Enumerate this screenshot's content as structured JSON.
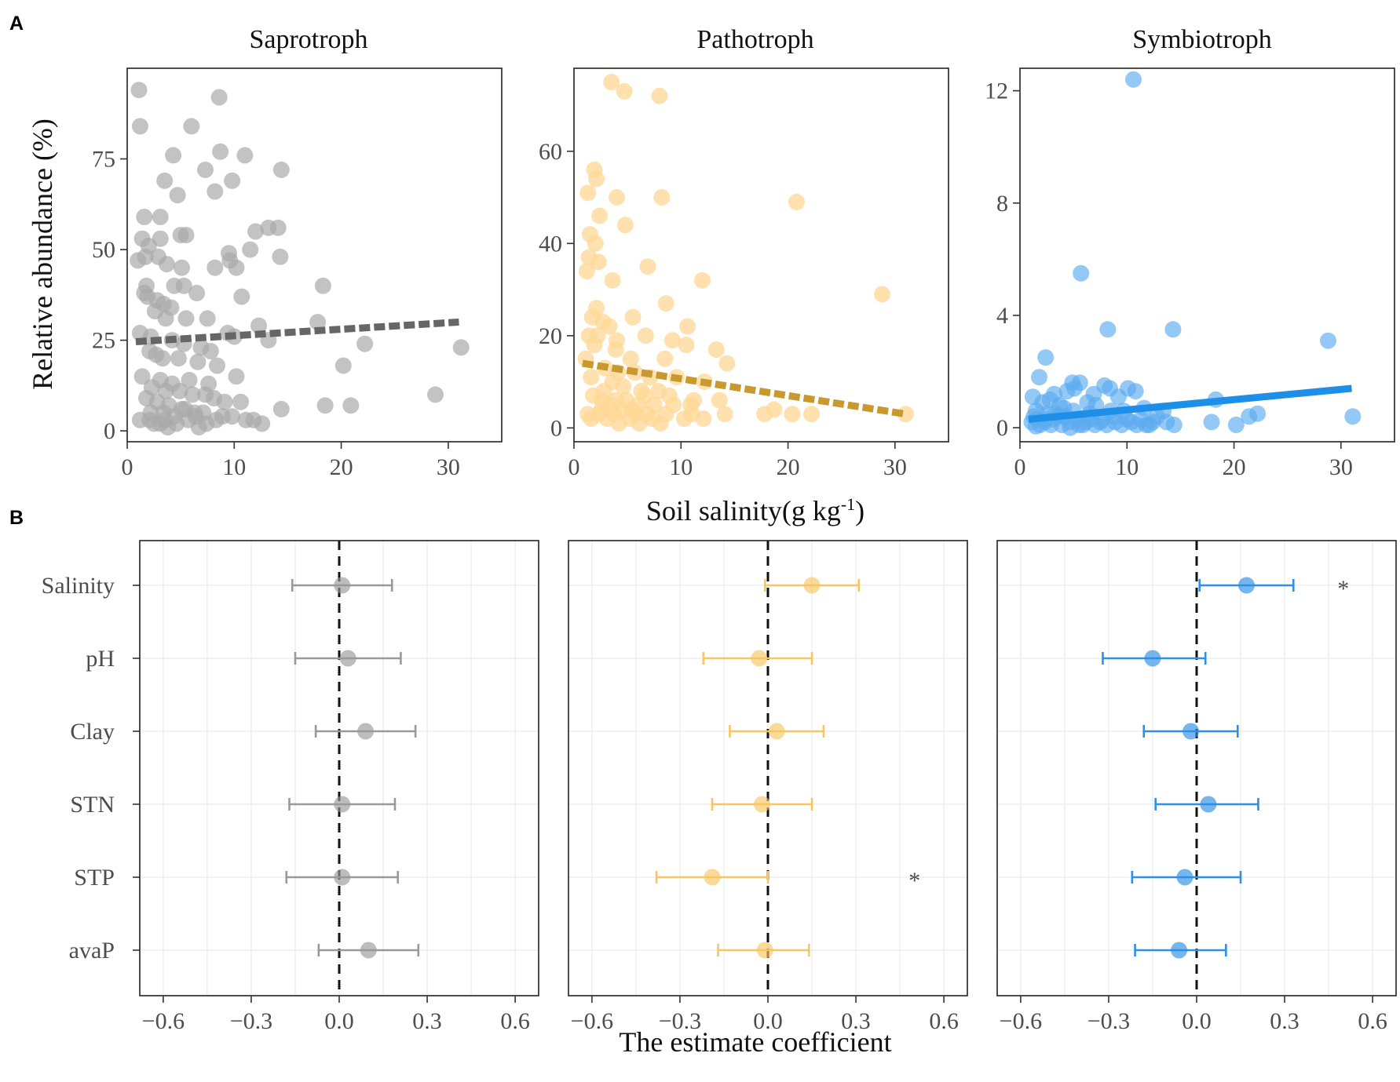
{
  "figure": {
    "panel_a_label": "A",
    "panel_b_label": "B",
    "a_ylabel": "Relative abundance (%)",
    "a_xlabel_main": "Soil salinity(g kg",
    "a_xlabel_sup": "-1",
    "a_xlabel_close": ")",
    "b_xlabel": "The estimate coefficient"
  },
  "colors": {
    "saprotroph": "#aaaaaa",
    "saprotroph_line": "#666666",
    "pathotroph": "#fdd794",
    "pathotroph_line": "#c9992f",
    "symbiotroph": "#5aaaf0",
    "symbiotroph_line": "#1e8fe8",
    "forest_gray": "#999999",
    "forest_orange": "#f6c663",
    "forest_blue": "#2d8fe6"
  },
  "chart_data": [
    {
      "id": "saprotroph",
      "type": "scatter",
      "title": "Saprotroph",
      "xlim": [
        0,
        35
      ],
      "ylim": [
        -3,
        100
      ],
      "xticks": [
        0,
        10,
        20,
        30
      ],
      "yticks": [
        0,
        25,
        50,
        75
      ],
      "trend": {
        "x": [
          0.8,
          31
        ],
        "y": [
          24.6,
          30
        ],
        "style": "dashed"
      },
      "points": [
        [
          1.1,
          94
        ],
        [
          8.6,
          92
        ],
        [
          1.2,
          84
        ],
        [
          6,
          84
        ],
        [
          4.3,
          76
        ],
        [
          8.7,
          77
        ],
        [
          11,
          76
        ],
        [
          3.5,
          69
        ],
        [
          7.3,
          72
        ],
        [
          9.8,
          69
        ],
        [
          14.4,
          72
        ],
        [
          8.2,
          66
        ],
        [
          4.7,
          65
        ],
        [
          1.6,
          59
        ],
        [
          3.1,
          59
        ],
        [
          12,
          55
        ],
        [
          13.2,
          56
        ],
        [
          14.1,
          56
        ],
        [
          5,
          54
        ],
        [
          5.5,
          54
        ],
        [
          3.1,
          53
        ],
        [
          1.4,
          53
        ],
        [
          2,
          51
        ],
        [
          9.5,
          49
        ],
        [
          9.6,
          47
        ],
        [
          10.2,
          45
        ],
        [
          11.5,
          50
        ],
        [
          14.3,
          48
        ],
        [
          1,
          47
        ],
        [
          1.7,
          48
        ],
        [
          2.9,
          48
        ],
        [
          3.7,
          46
        ],
        [
          5.1,
          45
        ],
        [
          8.2,
          45
        ],
        [
          1.8,
          40
        ],
        [
          4.4,
          40
        ],
        [
          5.3,
          40
        ],
        [
          6.5,
          38
        ],
        [
          10.7,
          37
        ],
        [
          18.3,
          40
        ],
        [
          1.6,
          38
        ],
        [
          1.9,
          37
        ],
        [
          2.8,
          36
        ],
        [
          3.4,
          35
        ],
        [
          4.1,
          34
        ],
        [
          5.5,
          31
        ],
        [
          7.5,
          31
        ],
        [
          2.6,
          33
        ],
        [
          3.6,
          31
        ],
        [
          9.4,
          27
        ],
        [
          10,
          26
        ],
        [
          12.3,
          29
        ],
        [
          13.2,
          25
        ],
        [
          17.8,
          30
        ],
        [
          1.2,
          27
        ],
        [
          2.2,
          26
        ],
        [
          4.2,
          25
        ],
        [
          5.3,
          24
        ],
        [
          6.9,
          23
        ],
        [
          7.8,
          22
        ],
        [
          22.2,
          24
        ],
        [
          31.2,
          23
        ],
        [
          2.1,
          22
        ],
        [
          2.7,
          21
        ],
        [
          3.3,
          20
        ],
        [
          4.8,
          20
        ],
        [
          6.6,
          19
        ],
        [
          8.4,
          18
        ],
        [
          10.2,
          15
        ],
        [
          20.2,
          18
        ],
        [
          1.4,
          15
        ],
        [
          3.1,
          14
        ],
        [
          4.2,
          13
        ],
        [
          5.8,
          14
        ],
        [
          7.6,
          13
        ],
        [
          2.3,
          12
        ],
        [
          3.6,
          11
        ],
        [
          4.9,
          11
        ],
        [
          6.1,
          10
        ],
        [
          7.3,
          10
        ],
        [
          8.1,
          9
        ],
        [
          9.1,
          8
        ],
        [
          10.6,
          8
        ],
        [
          1.8,
          9
        ],
        [
          2.8,
          8
        ],
        [
          3.9,
          7
        ],
        [
          5.1,
          6
        ],
        [
          6.3,
          5
        ],
        [
          7.1,
          5
        ],
        [
          8.9,
          4
        ],
        [
          9.8,
          4
        ],
        [
          11.1,
          3
        ],
        [
          11.8,
          3
        ],
        [
          12.6,
          2
        ],
        [
          14.4,
          6
        ],
        [
          18.5,
          7
        ],
        [
          20.9,
          7
        ],
        [
          28.8,
          10
        ],
        [
          1.2,
          3
        ],
        [
          2.1,
          3
        ],
        [
          3.1,
          2
        ],
        [
          3.8,
          1
        ],
        [
          4.6,
          2
        ],
        [
          5.7,
          3
        ],
        [
          6.4,
          4
        ],
        [
          7.4,
          2
        ],
        [
          8.3,
          3
        ],
        [
          2.2,
          5
        ],
        [
          3.4,
          5
        ],
        [
          4.4,
          4
        ],
        [
          5.4,
          6
        ],
        [
          2.5,
          2
        ],
        [
          3.5,
          3
        ],
        [
          6.7,
          1
        ]
      ]
    },
    {
      "id": "pathotroph",
      "type": "scatter",
      "title": "Pathotroph",
      "xlim": [
        0,
        35
      ],
      "ylim": [
        -3,
        78
      ],
      "xticks": [
        0,
        10,
        20,
        30
      ],
      "yticks": [
        0,
        20,
        40,
        60
      ],
      "trend": {
        "x": [
          0.8,
          31
        ],
        "y": [
          14,
          3
        ],
        "style": "dashed"
      },
      "points": [
        [
          3.5,
          75
        ],
        [
          4.7,
          73
        ],
        [
          8,
          72
        ],
        [
          1.9,
          56
        ],
        [
          2.1,
          54
        ],
        [
          1.3,
          51
        ],
        [
          4,
          50
        ],
        [
          8.2,
          50
        ],
        [
          2.4,
          46
        ],
        [
          4.8,
          44
        ],
        [
          1.5,
          42
        ],
        [
          2,
          40
        ],
        [
          20.8,
          49
        ],
        [
          1.4,
          37
        ],
        [
          2.3,
          36
        ],
        [
          6.9,
          35
        ],
        [
          1.2,
          34
        ],
        [
          3.6,
          32
        ],
        [
          12,
          32
        ],
        [
          28.8,
          29
        ],
        [
          2.1,
          26
        ],
        [
          8.6,
          27
        ],
        [
          1.7,
          24
        ],
        [
          2.7,
          23
        ],
        [
          5.5,
          24
        ],
        [
          3.3,
          22
        ],
        [
          10.6,
          22
        ],
        [
          1.4,
          20
        ],
        [
          2.2,
          20
        ],
        [
          4,
          19
        ],
        [
          6.7,
          20
        ],
        [
          9.2,
          19
        ],
        [
          10.5,
          18
        ],
        [
          13.3,
          17
        ],
        [
          1.9,
          18
        ],
        [
          3.9,
          17
        ],
        [
          5.3,
          15
        ],
        [
          8.5,
          15
        ],
        [
          14.3,
          14
        ],
        [
          1.1,
          15
        ],
        [
          2.9,
          13
        ],
        [
          4.1,
          12
        ],
        [
          5.7,
          12
        ],
        [
          7.1,
          11
        ],
        [
          9.6,
          11
        ],
        [
          12.2,
          10
        ],
        [
          1.6,
          11
        ],
        [
          3.6,
          10
        ],
        [
          4.6,
          9
        ],
        [
          6.3,
          8
        ],
        [
          7.9,
          8
        ],
        [
          11.2,
          6
        ],
        [
          1.8,
          7
        ],
        [
          2.6,
          6
        ],
        [
          3.4,
          5
        ],
        [
          4.4,
          4
        ],
        [
          5.4,
          4
        ],
        [
          6.8,
          3
        ],
        [
          8.6,
          3
        ],
        [
          10.3,
          2
        ],
        [
          12.1,
          2
        ],
        [
          14.1,
          3
        ],
        [
          17.8,
          3
        ],
        [
          18.7,
          4
        ],
        [
          20.4,
          3
        ],
        [
          22.2,
          3
        ],
        [
          31,
          3
        ],
        [
          1.3,
          3
        ],
        [
          2.3,
          3
        ],
        [
          3.1,
          2
        ],
        [
          4.2,
          1
        ],
        [
          5.2,
          2
        ],
        [
          6.1,
          1
        ],
        [
          7.3,
          2
        ],
        [
          8.1,
          1
        ],
        [
          9.3,
          5
        ],
        [
          10.9,
          5
        ],
        [
          13.6,
          6
        ],
        [
          2.8,
          8
        ],
        [
          3.9,
          6
        ],
        [
          4.9,
          6
        ],
        [
          6,
          5
        ],
        [
          7.5,
          5
        ],
        [
          2.6,
          4
        ],
        [
          3.7,
          3
        ],
        [
          5.8,
          3
        ],
        [
          6.6,
          7
        ],
        [
          8.9,
          7
        ],
        [
          1.6,
          2
        ],
        [
          11,
          3
        ]
      ]
    },
    {
      "id": "symbiotroph",
      "type": "scatter",
      "title": "Symbiotroph",
      "xlim": [
        0,
        35
      ],
      "ylim": [
        -0.5,
        12.8
      ],
      "xticks": [
        0,
        10,
        20,
        30
      ],
      "yticks": [
        0,
        4,
        8,
        12
      ],
      "trend": {
        "x": [
          0.8,
          31
        ],
        "y": [
          0.3,
          1.4
        ],
        "style": "solid"
      },
      "points": [
        [
          10.6,
          12.4
        ],
        [
          5.7,
          5.5
        ],
        [
          8.2,
          3.5
        ],
        [
          14.3,
          3.5
        ],
        [
          28.8,
          3.1
        ],
        [
          2.4,
          2.5
        ],
        [
          1.8,
          1.8
        ],
        [
          4.9,
          1.6
        ],
        [
          5.6,
          1.6
        ],
        [
          7.9,
          1.5
        ],
        [
          8.4,
          1.4
        ],
        [
          10.1,
          1.4
        ],
        [
          10.8,
          1.3
        ],
        [
          4.4,
          1.3
        ],
        [
          5.1,
          1.4
        ],
        [
          18.3,
          1
        ],
        [
          1.2,
          1.1
        ],
        [
          2.1,
          0.9
        ],
        [
          2.8,
          1
        ],
        [
          3.7,
          0.8
        ],
        [
          6.3,
          0.9
        ],
        [
          7.1,
          0.8
        ],
        [
          9.2,
          1.1
        ],
        [
          11.6,
          0.7
        ],
        [
          13.4,
          0.6
        ],
        [
          1.5,
          0.6
        ],
        [
          2.6,
          0.5
        ],
        [
          3.3,
          0.5
        ],
        [
          4.2,
          0.4
        ],
        [
          5.3,
          0.3
        ],
        [
          6.7,
          0.3
        ],
        [
          7.7,
          0.3
        ],
        [
          8.8,
          0.4
        ],
        [
          10,
          0.3
        ],
        [
          11.3,
          0.3
        ],
        [
          12.4,
          0.2
        ],
        [
          13.7,
          0.2
        ],
        [
          1.1,
          0.2
        ],
        [
          1.9,
          0.1
        ],
        [
          2.9,
          0.1
        ],
        [
          3.9,
          0.1
        ],
        [
          4.7,
          0
        ],
        [
          5.9,
          0.1
        ],
        [
          7,
          0.1
        ],
        [
          8.1,
          0.1
        ],
        [
          9.5,
          0.1
        ],
        [
          10.9,
          0.1
        ],
        [
          12.1,
          0.1
        ],
        [
          14.4,
          0.1
        ],
        [
          17.9,
          0.2
        ],
        [
          20.2,
          0.1
        ],
        [
          21.4,
          0.4
        ],
        [
          22.2,
          0.5
        ],
        [
          31.1,
          0.4
        ],
        [
          1.6,
          0.3
        ],
        [
          3.1,
          0.3
        ],
        [
          4.6,
          0.2
        ],
        [
          6.1,
          0.2
        ],
        [
          7.5,
          0.2
        ],
        [
          8.9,
          0.2
        ],
        [
          10.4,
          0.2
        ],
        [
          11.8,
          0.1
        ],
        [
          2.3,
          0.2
        ],
        [
          3.6,
          0.4
        ],
        [
          5,
          0.6
        ],
        [
          6.5,
          0.5
        ],
        [
          9.7,
          0.6
        ],
        [
          12.8,
          0.4
        ],
        [
          1.3,
          0.4
        ],
        [
          3.2,
          1.2
        ],
        [
          4.1,
          0.7
        ],
        [
          6.9,
          1.2
        ],
        [
          8.5,
          0.6
        ],
        [
          2.4,
          0.3
        ],
        [
          5.5,
          0.1
        ],
        [
          1.5,
          0.05
        ]
      ]
    },
    {
      "id": "forest-saprotroph",
      "type": "forest",
      "xlim": [
        -0.68,
        0.68
      ],
      "xticks": [
        -0.6,
        -0.3,
        0.0,
        0.3,
        0.6
      ],
      "xtick_labels": [
        "−0.6",
        "−0.3",
        "0.0",
        "0.3",
        "0.6"
      ],
      "labels": [
        "Salinity",
        "pH",
        "Clay",
        "STN",
        "STP",
        "avaP"
      ],
      "estimates": [
        0.01,
        0.03,
        0.09,
        0.01,
        0.01,
        0.1
      ],
      "lower": [
        -0.16,
        -0.15,
        -0.08,
        -0.17,
        -0.18,
        -0.07
      ],
      "upper": [
        0.18,
        0.21,
        0.26,
        0.19,
        0.2,
        0.27
      ],
      "significance": [
        "",
        "",
        "",
        "",
        "",
        ""
      ]
    },
    {
      "id": "forest-pathotroph",
      "type": "forest",
      "xlim": [
        -0.68,
        0.68
      ],
      "xticks": [
        -0.6,
        -0.3,
        0.0,
        0.3,
        0.6
      ],
      "xtick_labels": [
        "−0.6",
        "−0.3",
        "0.0",
        "0.3",
        "0.6"
      ],
      "labels": [
        "Salinity",
        "pH",
        "Clay",
        "STN",
        "STP",
        "avaP"
      ],
      "estimates": [
        0.15,
        -0.03,
        0.03,
        -0.02,
        -0.19,
        -0.01
      ],
      "lower": [
        -0.01,
        -0.22,
        -0.13,
        -0.19,
        -0.38,
        -0.17
      ],
      "upper": [
        0.31,
        0.15,
        0.19,
        0.15,
        0.0,
        0.14
      ],
      "significance": [
        "",
        "",
        "",
        "",
        "*",
        ""
      ]
    },
    {
      "id": "forest-symbiotroph",
      "type": "forest",
      "xlim": [
        -0.68,
        0.68
      ],
      "xticks": [
        -0.6,
        -0.3,
        0.0,
        0.3,
        0.6
      ],
      "xtick_labels": [
        "−0.6",
        "−0.3",
        "0.0",
        "0.3",
        "0.6"
      ],
      "labels": [
        "Salinity",
        "pH",
        "Clay",
        "STN",
        "STP",
        "avaP"
      ],
      "estimates": [
        0.17,
        -0.15,
        -0.02,
        0.04,
        -0.04,
        -0.06
      ],
      "lower": [
        0.01,
        -0.32,
        -0.18,
        -0.14,
        -0.22,
        -0.21
      ],
      "upper": [
        0.33,
        0.03,
        0.14,
        0.21,
        0.15,
        0.1
      ],
      "significance": [
        "*",
        "",
        "",
        "",
        "",
        ""
      ]
    }
  ]
}
